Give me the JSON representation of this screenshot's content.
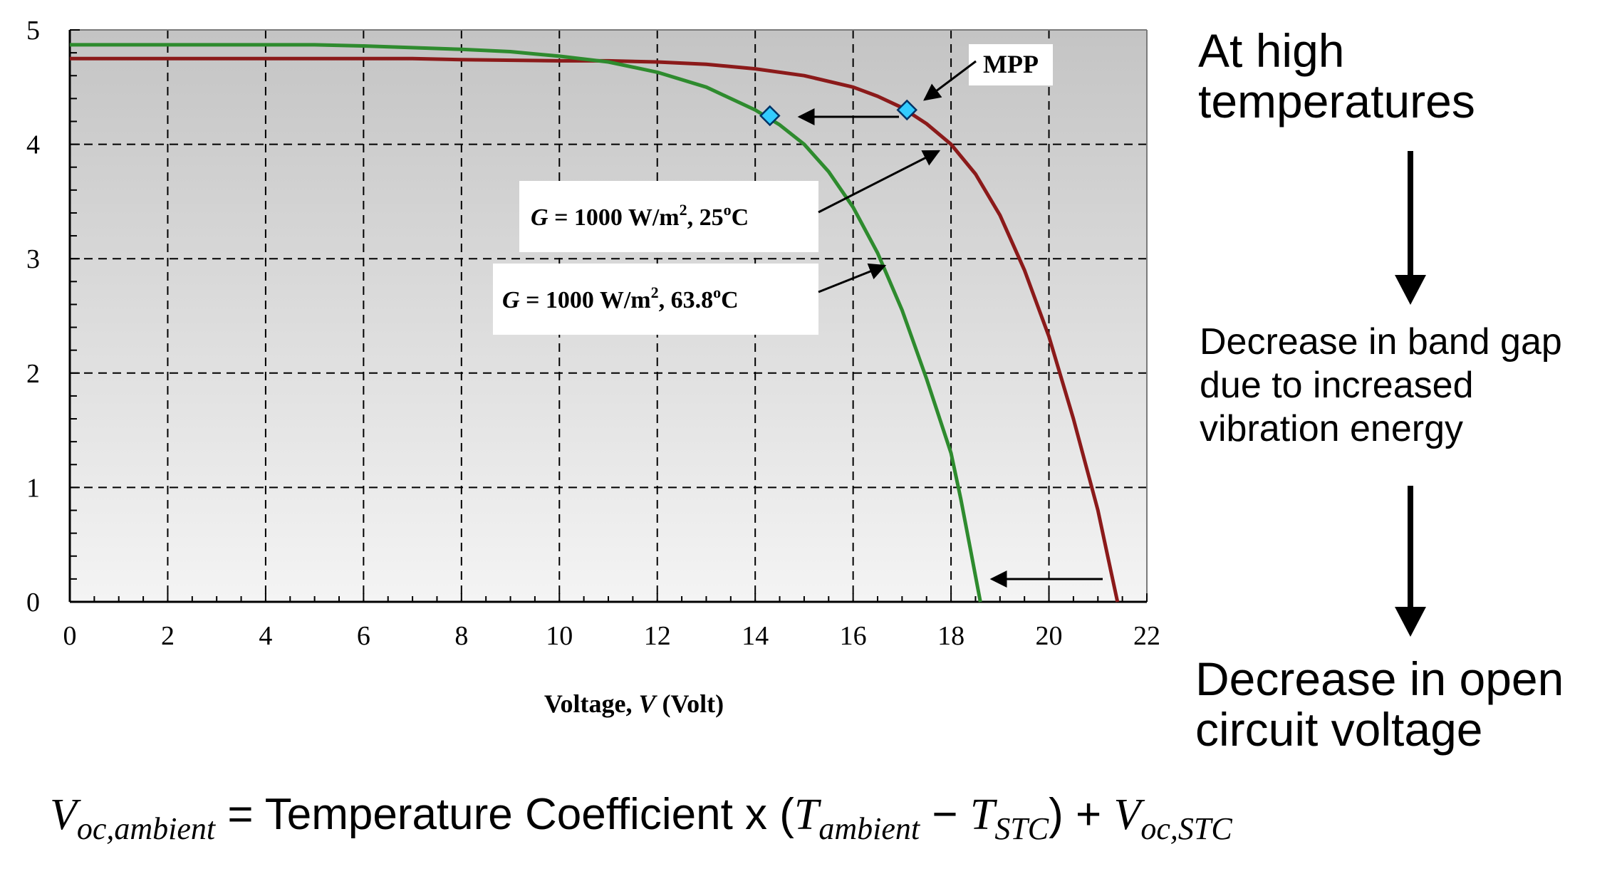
{
  "chart_data": {
    "type": "line",
    "title": "",
    "xlabel": "Voltage, V (Volt)",
    "ylabel": "",
    "xlim": [
      0,
      22
    ],
    "ylim": [
      0,
      5
    ],
    "x_ticks": [
      0,
      2,
      4,
      6,
      8,
      10,
      12,
      14,
      16,
      18,
      20,
      22
    ],
    "y_ticks": [
      0,
      1,
      2,
      3,
      4,
      5
    ],
    "grid": true,
    "series": [
      {
        "name": "G = 1000 W/m², 25°C",
        "color": "#8b1a1a",
        "x": [
          0,
          2,
          4,
          6,
          7,
          8,
          10,
          11,
          12,
          13,
          14,
          15,
          16,
          16.5,
          17,
          17.5,
          18,
          18.5,
          19,
          19.5,
          20,
          20.5,
          21,
          21.2,
          21.4
        ],
        "y": [
          4.75,
          4.75,
          4.75,
          4.75,
          4.75,
          4.74,
          4.73,
          4.73,
          4.72,
          4.7,
          4.66,
          4.6,
          4.5,
          4.42,
          4.32,
          4.18,
          4.0,
          3.74,
          3.38,
          2.9,
          2.32,
          1.6,
          0.8,
          0.4,
          0.0
        ]
      },
      {
        "name": "G = 1000 W/m², 63.8°C",
        "color": "#2e8b2e",
        "x": [
          0,
          2,
          4,
          5,
          6,
          8,
          9,
          10,
          11,
          12,
          13,
          14,
          14.5,
          15,
          15.5,
          16,
          16.5,
          17,
          17.5,
          18,
          18.2,
          18.4,
          18.6
        ],
        "y": [
          4.87,
          4.87,
          4.87,
          4.87,
          4.86,
          4.83,
          4.81,
          4.77,
          4.72,
          4.63,
          4.5,
          4.3,
          4.17,
          4.0,
          3.76,
          3.45,
          3.05,
          2.55,
          1.95,
          1.3,
          0.9,
          0.45,
          0.0
        ]
      }
    ],
    "mpp_points": [
      {
        "label": "MPP 25°C",
        "x": 17.1,
        "y": 4.3
      },
      {
        "label": "MPP 63.8°C",
        "x": 14.3,
        "y": 4.25
      }
    ],
    "annotations": {
      "mpp_label": "MPP",
      "curve_25": {
        "G": "G",
        "rest": " = 1000 W/m",
        "exp": "2",
        "temp": ", 25",
        "deg": "o",
        "unit": "C"
      },
      "curve_63": {
        "G": "G",
        "rest": " = 1000 W/m",
        "exp": "2",
        "temp": ", 63.8",
        "deg": "o",
        "unit": "C"
      }
    },
    "xlabel_parts": {
      "pre": "Voltage, ",
      "var": "V",
      "post": " (Volt)"
    }
  },
  "side_notes": {
    "top": "At high temperatures",
    "middle": "Decrease in band gap due to increased vibration energy",
    "bottom": "Decrease in open circuit voltage"
  },
  "formula": {
    "lhs_var": "V",
    "lhs_sub": "oc,ambient",
    "eq_text": " = Temperature Coefficient x ",
    "open_paren": "(",
    "t1_var": "T",
    "t1_sub": "ambient",
    "minus": " − ",
    "t2_var": "T",
    "t2_sub": "STC",
    "close_plus": ") + ",
    "rhs_var": "V",
    "rhs_sub": "oc,STC"
  },
  "colors": {
    "curve_25": "#8b1a1a",
    "curve_63": "#2e8b2e",
    "mpp_marker": "#33ccff",
    "plot_top": "#c4c4c4",
    "plot_bottom": "#f4f4f4"
  }
}
